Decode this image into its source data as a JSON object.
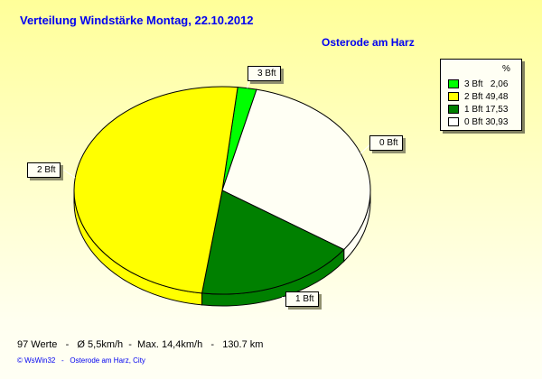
{
  "chart_data": {
    "type": "pie",
    "title": "Verteilung Windstärke  Montag, 22.10.2012",
    "subtitle": "Osterode am Harz",
    "legend_header": "%",
    "legend_position": "top-right",
    "slices": [
      {
        "label": "3 Bft",
        "value": 2.06,
        "value_text": "2,06",
        "color": "#00FF00"
      },
      {
        "label": "0 Bft",
        "value": 30.93,
        "value_text": "30,93",
        "color": "#FFFFF4"
      },
      {
        "label": "1 Bft",
        "value": 17.53,
        "value_text": "17,53",
        "color": "#008000"
      },
      {
        "label": "2 Bft",
        "value": 49.48,
        "value_text": "49,48",
        "color": "#FFFF00"
      }
    ],
    "legend_order": [
      0,
      3,
      2,
      1
    ]
  },
  "footer": {
    "stats": "97 Werte   -   Ø 5,5km/h  -  Max. 14,4km/h   -   130.7 km",
    "credit": "© WsWin32   -   Osterode am Harz, City"
  }
}
